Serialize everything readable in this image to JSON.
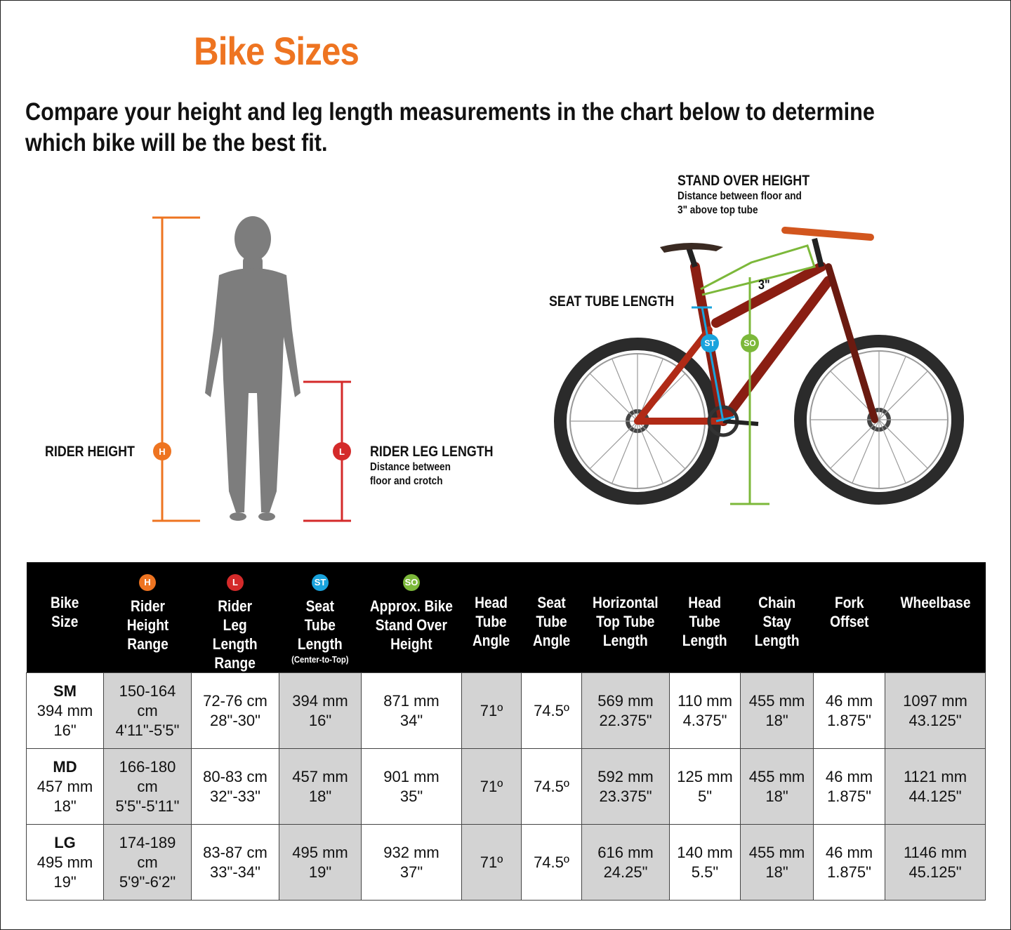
{
  "title": "Bike Sizes",
  "intro": "Compare your height and leg length measurements in the chart below to determine which bike will be the best fit.",
  "rider": {
    "height_label": "RIDER HEIGHT",
    "height_badge": "H",
    "leg_label": "RIDER LEG LENGTH",
    "leg_desc_1": "Distance between",
    "leg_desc_2": "floor and crotch",
    "leg_badge": "L"
  },
  "bike": {
    "stand_over_label": "STAND OVER HEIGHT",
    "stand_over_desc_1": "Distance between floor and",
    "stand_over_desc_2": "3\" above top tube",
    "seat_tube_label": "SEAT TUBE LENGTH",
    "st_badge": "ST",
    "so_badge": "SO",
    "three_inch": "3\""
  },
  "colors": {
    "orange": "#ee7421",
    "red": "#d42a2a",
    "blue": "#19a3dd",
    "green": "#7cb83a",
    "grey_cell": "#d3d3d3"
  },
  "table": {
    "headers": [
      {
        "badge": "",
        "lines": [
          "Bike",
          "Size"
        ],
        "sub": ""
      },
      {
        "badge": "H",
        "lines": [
          "Rider Height",
          "Range"
        ],
        "sub": ""
      },
      {
        "badge": "L",
        "lines": [
          "Rider",
          "Leg",
          "Length",
          "Range"
        ],
        "sub": ""
      },
      {
        "badge": "ST",
        "lines": [
          "Seat",
          "Tube",
          "Length"
        ],
        "sub": "(Center-to-Top)"
      },
      {
        "badge": "SO",
        "lines": [
          "Approx. Bike",
          "Stand Over",
          "Height"
        ],
        "sub": ""
      },
      {
        "badge": "",
        "lines": [
          "Head",
          "Tube",
          "Angle"
        ],
        "sub": ""
      },
      {
        "badge": "",
        "lines": [
          "Seat",
          "Tube",
          "Angle"
        ],
        "sub": ""
      },
      {
        "badge": "",
        "lines": [
          "Horizontal",
          "Top Tube",
          "Length"
        ],
        "sub": ""
      },
      {
        "badge": "",
        "lines": [
          "Head",
          "Tube",
          "Length"
        ],
        "sub": ""
      },
      {
        "badge": "",
        "lines": [
          "Chain",
          "Stay",
          "Length"
        ],
        "sub": ""
      },
      {
        "badge": "",
        "lines": [
          "Fork",
          "Offset"
        ],
        "sub": ""
      },
      {
        "badge": "",
        "lines": [
          "Wheelbase"
        ],
        "sub": ""
      }
    ],
    "rows": [
      {
        "size": "SM",
        "cells": [
          [
            "394 mm",
            "16\""
          ],
          [
            "150-164",
            "cm",
            "4'11\"-5'5\""
          ],
          [
            "72-76 cm",
            "28\"-30\""
          ],
          [
            "394 mm",
            "16\""
          ],
          [
            "871 mm",
            "34\""
          ],
          [
            "71º"
          ],
          [
            "74.5º"
          ],
          [
            "569 mm",
            "22.375\""
          ],
          [
            "110 mm",
            "4.375\""
          ],
          [
            "455 mm",
            "18\""
          ],
          [
            "46 mm",
            "1.875\""
          ],
          [
            "1097 mm",
            "43.125\""
          ]
        ]
      },
      {
        "size": "MD",
        "cells": [
          [
            "457 mm",
            "18\""
          ],
          [
            "166-180",
            "cm",
            "5'5\"-5'11\""
          ],
          [
            "80-83 cm",
            "32\"-33\""
          ],
          [
            "457 mm",
            "18\""
          ],
          [
            "901 mm",
            "35\""
          ],
          [
            "71º"
          ],
          [
            "74.5º"
          ],
          [
            "592 mm",
            "23.375\""
          ],
          [
            "125 mm",
            "5\""
          ],
          [
            "455 mm",
            "18\""
          ],
          [
            "46 mm",
            "1.875\""
          ],
          [
            "1121 mm",
            "44.125\""
          ]
        ]
      },
      {
        "size": "LG",
        "cells": [
          [
            "495 mm",
            "19\""
          ],
          [
            "174-189",
            "cm",
            "5'9\"-6'2\""
          ],
          [
            "83-87 cm",
            "33\"-34\""
          ],
          [
            "495 mm",
            "19\""
          ],
          [
            "932 mm",
            "37\""
          ],
          [
            "71º"
          ],
          [
            "74.5º"
          ],
          [
            "616 mm",
            "24.25\""
          ],
          [
            "140 mm",
            "5.5\""
          ],
          [
            "455 mm",
            "18\""
          ],
          [
            "46 mm",
            "1.875\""
          ],
          [
            "1146 mm",
            "45.125\""
          ]
        ]
      }
    ]
  }
}
